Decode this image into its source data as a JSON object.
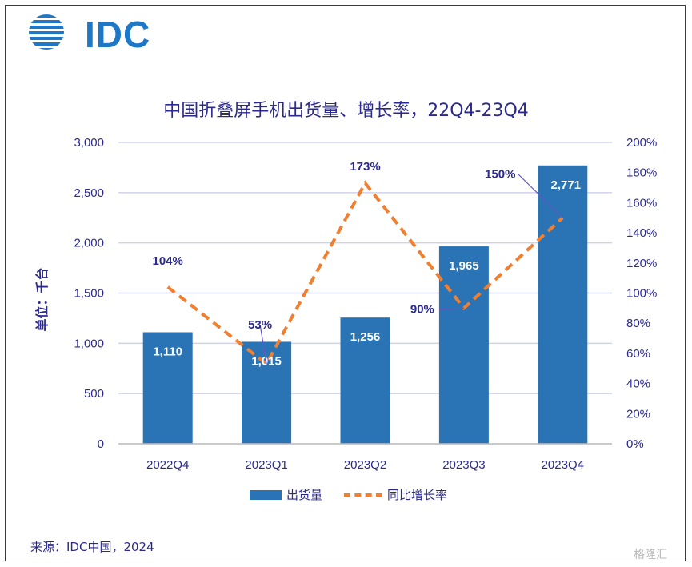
{
  "logo": {
    "text": "IDC"
  },
  "watermark": "格隆汇",
  "chart_data": {
    "type": "bar",
    "title": "中国折叠屏手机出货量、增长率，22Q4-23Q4",
    "categories": [
      "2022Q4",
      "2023Q1",
      "2023Q2",
      "2023Q3",
      "2023Q4"
    ],
    "series": [
      {
        "name": "出货量",
        "type": "bar",
        "axis": "left",
        "values": [
          1110,
          1015,
          1256,
          1965,
          2771
        ],
        "labels": [
          "1,110",
          "1,015",
          "1,256",
          "1,965",
          "2,771"
        ]
      },
      {
        "name": "同比增长率",
        "type": "line",
        "axis": "right",
        "style": "dashed",
        "values": [
          104,
          53,
          173,
          90,
          150
        ],
        "labels": [
          "104%",
          "53%",
          "173%",
          "90%",
          "150%"
        ]
      }
    ],
    "ylabel": "单位：千台",
    "ylim": [
      0,
      3000
    ],
    "y_ticks": [
      "0",
      "500",
      "1,000",
      "1,500",
      "2,000",
      "2,500",
      "3,000"
    ],
    "y2lim": [
      0,
      200
    ],
    "y2_ticks": [
      "0%",
      "20%",
      "40%",
      "60%",
      "80%",
      "100%",
      "120%",
      "140%",
      "160%",
      "180%",
      "200%"
    ],
    "grid": true,
    "legend_position": "bottom",
    "colors": {
      "bar": "#2a74b6",
      "line": "#f07f2f",
      "text": "#2b2a8c",
      "grid": "#cfd3ea"
    }
  },
  "source": "来源：IDC中国，2024"
}
